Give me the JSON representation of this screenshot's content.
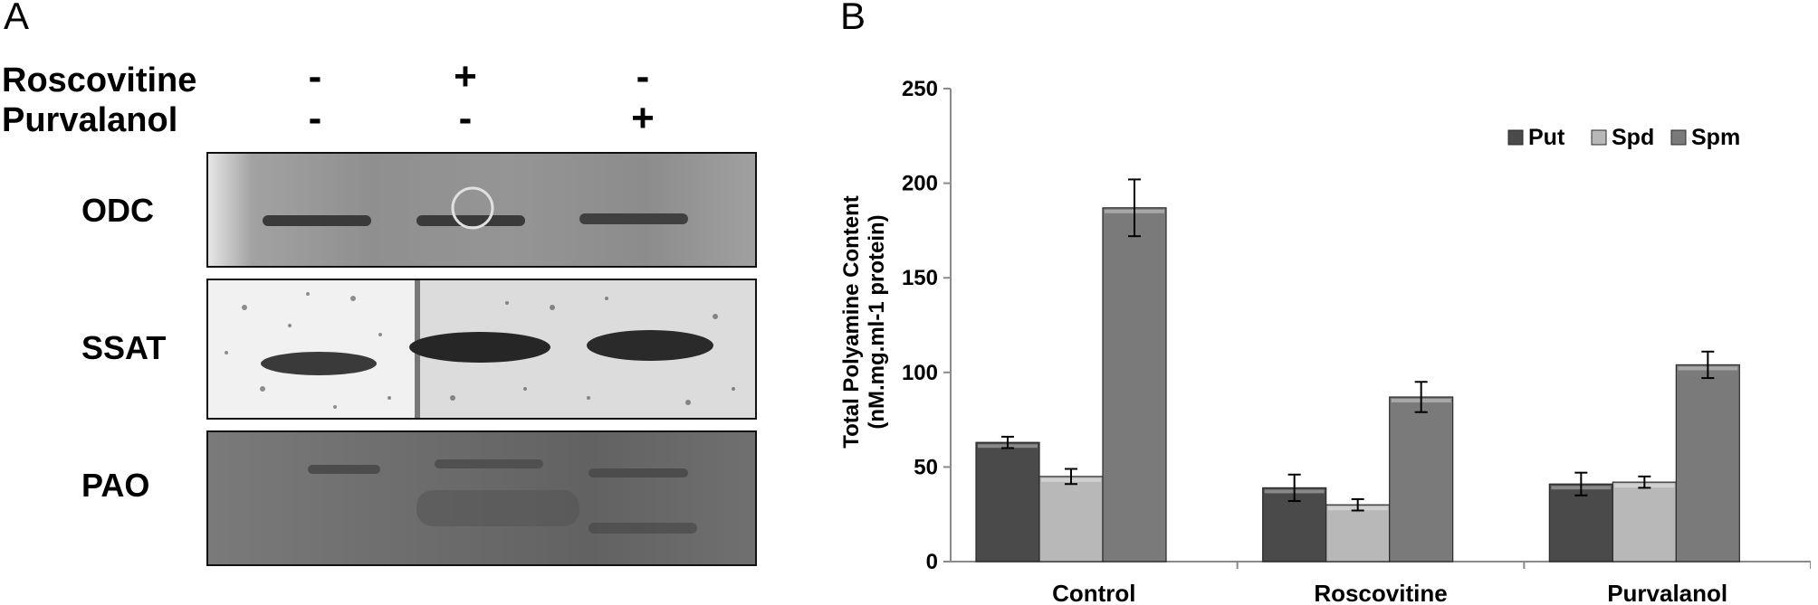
{
  "panel_a": {
    "letter": "A",
    "conditions": [
      {
        "label": "Roscovitine",
        "signs": [
          "-",
          "+",
          "-"
        ]
      },
      {
        "label": "Purvalanol",
        "signs": [
          "-",
          "-",
          "+"
        ]
      }
    ],
    "blots": [
      {
        "label": "ODC"
      },
      {
        "label": "SSAT"
      },
      {
        "label": "PAO"
      }
    ]
  },
  "panel_b": {
    "letter": "B"
  },
  "chart_data": {
    "type": "bar",
    "title": "",
    "xlabel": "",
    "ylabel_lines": [
      "Total Polyamine Content",
      "(nM.mg.ml-1 protein)"
    ],
    "ylim": [
      0,
      250
    ],
    "yticks": [
      0,
      50,
      100,
      150,
      200,
      250
    ],
    "categories": [
      "Control",
      "Roscovitine",
      "Purvalanol"
    ],
    "series": [
      {
        "name": "Put",
        "values": [
          63,
          39,
          41
        ],
        "errors": [
          3,
          7,
          6
        ],
        "color": "#4a4a4a"
      },
      {
        "name": "Spd",
        "values": [
          45,
          30,
          42
        ],
        "errors": [
          4,
          3,
          3
        ],
        "color": "#b8b8b8"
      },
      {
        "name": "Spm",
        "values": [
          187,
          87,
          104
        ],
        "errors": [
          15,
          8,
          7
        ],
        "color": "#7a7a7a"
      }
    ],
    "legend_position": "top-right",
    "grid": false
  }
}
